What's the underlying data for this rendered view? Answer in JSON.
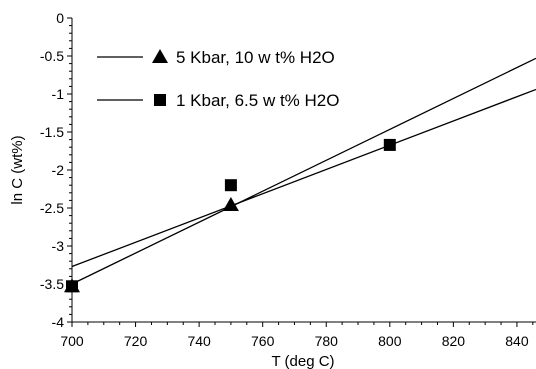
{
  "chart_data": {
    "type": "scatter",
    "title": "",
    "xlabel": "T (deg C)",
    "ylabel": "ln C (wt%)",
    "xlim": [
      700,
      846
    ],
    "ylim": [
      -4,
      0
    ],
    "x_ticks": [
      700,
      720,
      740,
      760,
      780,
      800,
      820,
      840
    ],
    "y_ticks": [
      0,
      -0.5,
      -1,
      -1.5,
      -2,
      -2.5,
      -3,
      -3.5,
      -4
    ],
    "y_tick_labels": [
      "0",
      "-0.5",
      "-1",
      "-1.5",
      "-2",
      "-2.5",
      "-3",
      "-3.5",
      "-4"
    ],
    "grid": false,
    "legend_position": "top-left",
    "series": [
      {
        "name": "5 Kbar, 10 w t% H2O",
        "marker": "triangle",
        "points": [
          {
            "x": 700,
            "y": -3.53
          },
          {
            "x": 750,
            "y": -2.46
          }
        ],
        "fit_line": [
          {
            "x": 700,
            "y": -3.5
          },
          {
            "x": 846,
            "y": -0.53
          }
        ]
      },
      {
        "name": "1 Kbar, 6.5 w t% H2O",
        "marker": "square",
        "points": [
          {
            "x": 700,
            "y": -3.53
          },
          {
            "x": 750,
            "y": -2.2
          },
          {
            "x": 800,
            "y": -1.67
          }
        ],
        "fit_line": [
          {
            "x": 700,
            "y": -3.27
          },
          {
            "x": 846,
            "y": -0.94
          }
        ]
      }
    ]
  }
}
